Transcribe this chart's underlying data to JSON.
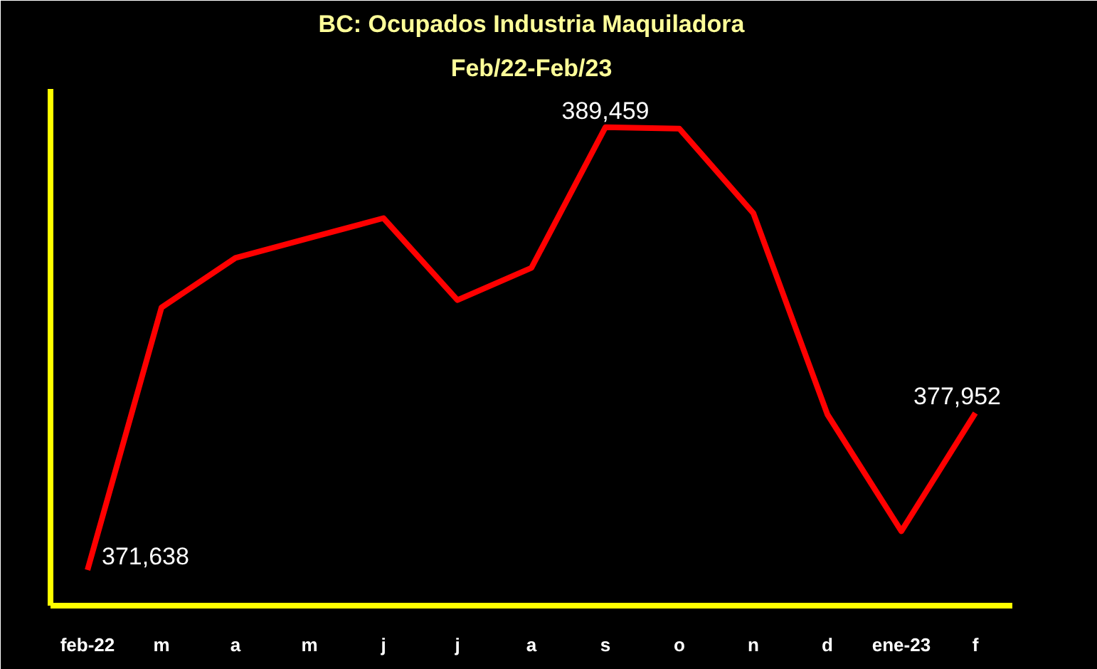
{
  "chart_data": {
    "type": "line",
    "title": "BC: Ocupados Industria Maquiladora",
    "subtitle": "Feb/22-Feb/23",
    "categories": [
      "feb-22",
      "m",
      "a",
      "m",
      "j",
      "j",
      "a",
      "s",
      "o",
      "n",
      "d",
      "ene-23",
      "f"
    ],
    "series": [
      {
        "color": "#ff0000",
        "values": [
          371638,
          382200,
          384200,
          385000,
          385800,
          382500,
          383800,
          389459,
          389400,
          386000,
          377900,
          373200,
          377952
        ],
        "value_labels": [
          "371,638",
          null,
          null,
          null,
          null,
          null,
          null,
          "389,459",
          null,
          null,
          null,
          null,
          "377,952"
        ]
      }
    ],
    "ylim": [
      370200,
      391000
    ],
    "tick_labels": "x",
    "grid": false,
    "marker": "none",
    "line_style": "solid"
  }
}
